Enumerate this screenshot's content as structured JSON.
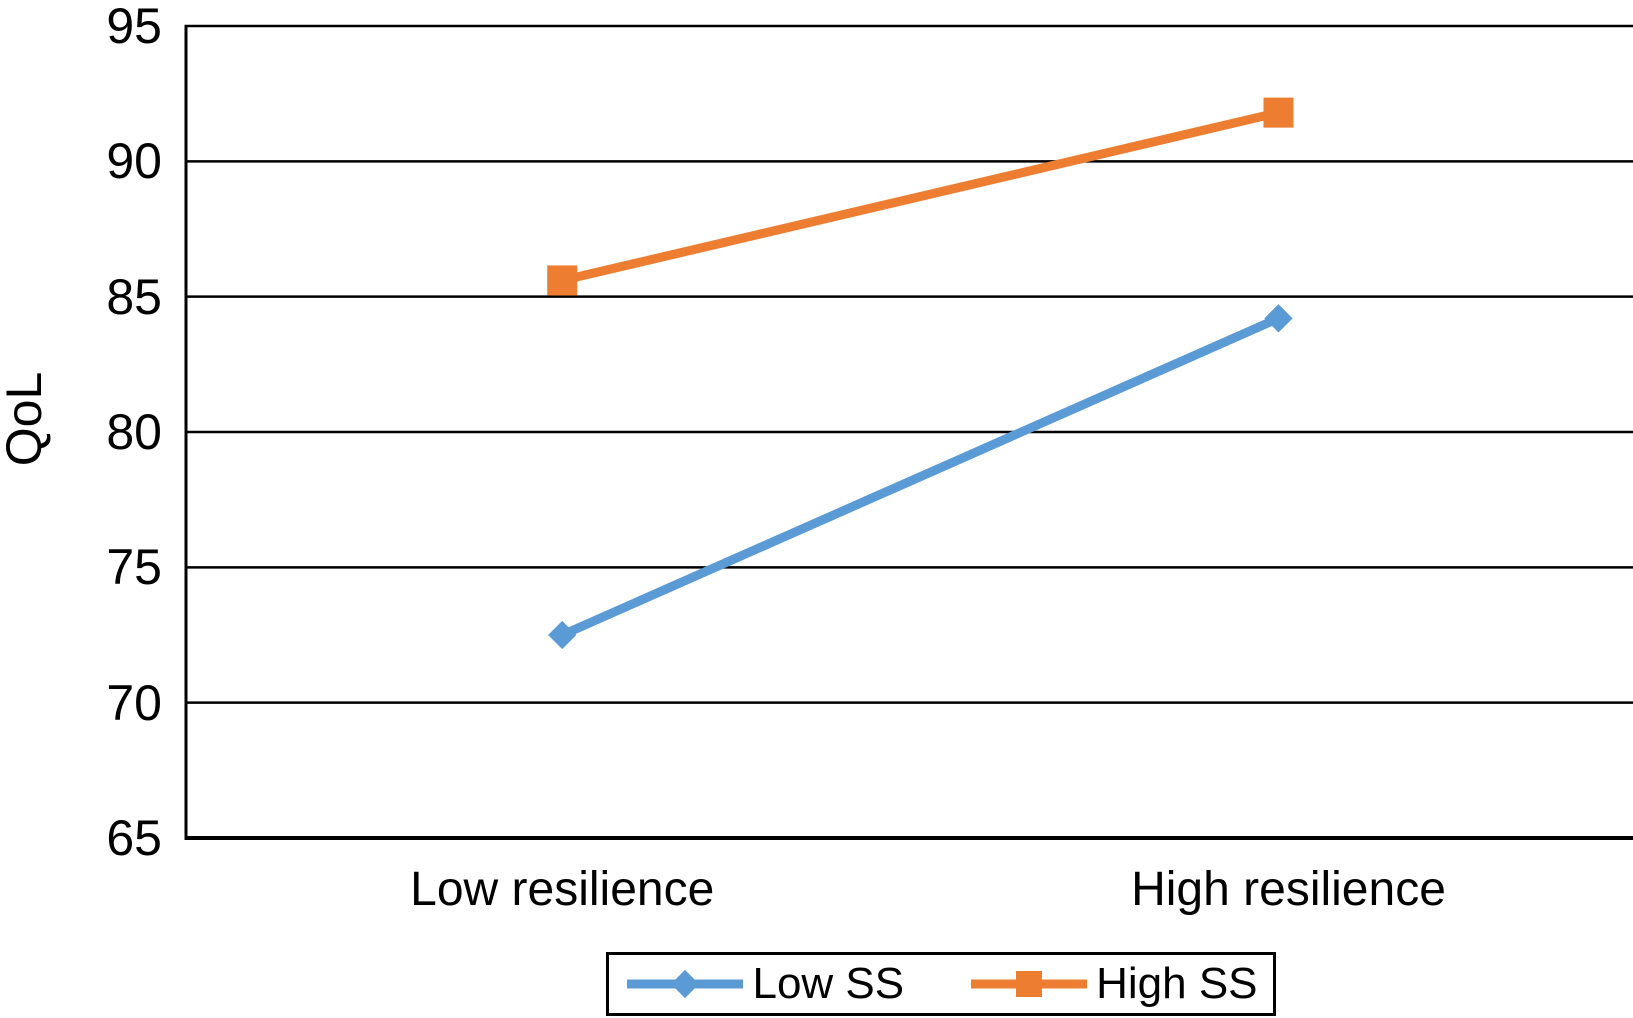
{
  "chart_data": {
    "type": "line",
    "title": "",
    "xlabel": "",
    "ylabel": "QoL",
    "categories": [
      "Low resilience",
      "High resilience"
    ],
    "series": [
      {
        "name": "Low SS",
        "values": [
          72.5,
          84.2
        ],
        "color": "#5B9BD5",
        "marker": "diamond"
      },
      {
        "name": "High SS",
        "values": [
          85.6,
          91.8
        ],
        "color": "#ED7D31",
        "marker": "square"
      }
    ],
    "ylim": [
      65,
      95
    ],
    "yticks": [
      65,
      70,
      75,
      80,
      85,
      90,
      95
    ],
    "grid": true,
    "legend_position": "bottom",
    "axis_color": "#000000",
    "text_color": "#000000",
    "background_color": "#ffffff"
  }
}
